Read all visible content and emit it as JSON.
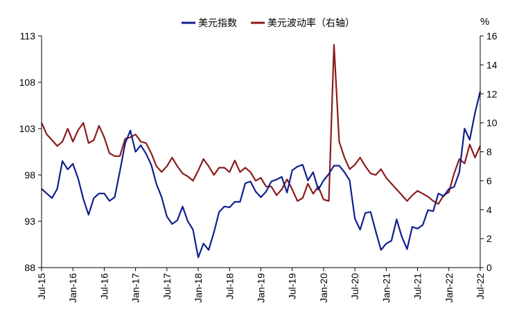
{
  "chart_data": {
    "type": "line",
    "title": "",
    "legend": {
      "placement": "top-center",
      "entries": [
        "美元指数",
        "美元波动率（右轴）"
      ]
    },
    "colors": {
      "dxy": "#0F1F8C",
      "vol": "#8B1A1A",
      "axis": "#000000"
    },
    "x": {
      "start_month": "2015-07",
      "end_month": "2022-07",
      "tick_labels": [
        "Jul-15",
        "Jan-16",
        "Jul-16",
        "Jan-17",
        "Jul-17",
        "Jan-18",
        "Jul-18",
        "Jan-19",
        "Jul-19",
        "Jan-20",
        "Jul-20",
        "Jan-21",
        "Jul-21",
        "Jan-22",
        "Jul-22"
      ]
    },
    "y_left": {
      "min": 88,
      "max": 113,
      "ticks": [
        88,
        93,
        98,
        103,
        108,
        113
      ]
    },
    "y_right": {
      "min": 0,
      "max": 16,
      "ticks": [
        0,
        2,
        4,
        6,
        8,
        10,
        12,
        14,
        16
      ],
      "unit": "%"
    },
    "series": [
      {
        "name": "美元指数",
        "axis": "left",
        "points": [
          [
            "2015-07",
            96.5
          ],
          [
            "2015-08",
            96.0
          ],
          [
            "2015-09",
            95.5
          ],
          [
            "2015-10",
            96.5
          ],
          [
            "2015-11",
            99.5
          ],
          [
            "2015-12",
            98.6
          ],
          [
            "2016-01",
            99.2
          ],
          [
            "2016-02",
            97.6
          ],
          [
            "2016-03",
            95.4
          ],
          [
            "2016-04",
            93.7
          ],
          [
            "2016-05",
            95.5
          ],
          [
            "2016-06",
            96.0
          ],
          [
            "2016-07",
            96.0
          ],
          [
            "2016-08",
            95.2
          ],
          [
            "2016-09",
            95.6
          ],
          [
            "2016-10",
            98.4
          ],
          [
            "2016-11",
            101.4
          ],
          [
            "2016-12",
            102.8
          ],
          [
            "2017-01",
            100.5
          ],
          [
            "2017-02",
            101.2
          ],
          [
            "2017-03",
            100.3
          ],
          [
            "2017-04",
            99.1
          ],
          [
            "2017-05",
            97.0
          ],
          [
            "2017-06",
            95.6
          ],
          [
            "2017-07",
            93.5
          ],
          [
            "2017-08",
            92.7
          ],
          [
            "2017-09",
            93.1
          ],
          [
            "2017-10",
            94.6
          ],
          [
            "2017-11",
            93.0
          ],
          [
            "2017-12",
            92.1
          ],
          [
            "2018-01",
            89.1
          ],
          [
            "2018-02",
            90.6
          ],
          [
            "2018-03",
            89.9
          ],
          [
            "2018-04",
            91.8
          ],
          [
            "2018-05",
            94.0
          ],
          [
            "2018-06",
            94.6
          ],
          [
            "2018-07",
            94.5
          ],
          [
            "2018-08",
            95.1
          ],
          [
            "2018-09",
            95.1
          ],
          [
            "2018-10",
            97.1
          ],
          [
            "2018-11",
            97.3
          ],
          [
            "2018-12",
            96.2
          ],
          [
            "2019-01",
            95.6
          ],
          [
            "2019-02",
            96.2
          ],
          [
            "2019-03",
            97.3
          ],
          [
            "2019-04",
            97.5
          ],
          [
            "2019-05",
            97.8
          ],
          [
            "2019-06",
            96.1
          ],
          [
            "2019-07",
            98.5
          ],
          [
            "2019-08",
            98.9
          ],
          [
            "2019-09",
            99.1
          ],
          [
            "2019-10",
            97.4
          ],
          [
            "2019-11",
            98.3
          ],
          [
            "2019-12",
            96.4
          ],
          [
            "2020-01",
            97.4
          ],
          [
            "2020-02",
            98.1
          ],
          [
            "2020-03",
            99.0
          ],
          [
            "2020-04",
            99.0
          ],
          [
            "2020-05",
            98.3
          ],
          [
            "2020-06",
            97.4
          ],
          [
            "2020-07",
            93.3
          ],
          [
            "2020-08",
            92.1
          ],
          [
            "2020-09",
            93.9
          ],
          [
            "2020-10",
            94.0
          ],
          [
            "2020-11",
            91.9
          ],
          [
            "2020-12",
            89.9
          ],
          [
            "2021-01",
            90.6
          ],
          [
            "2021-02",
            90.9
          ],
          [
            "2021-03",
            93.2
          ],
          [
            "2021-04",
            91.3
          ],
          [
            "2021-05",
            90.0
          ],
          [
            "2021-06",
            92.4
          ],
          [
            "2021-07",
            92.2
          ],
          [
            "2021-08",
            92.6
          ],
          [
            "2021-09",
            94.2
          ],
          [
            "2021-10",
            94.1
          ],
          [
            "2021-11",
            96.0
          ],
          [
            "2021-12",
            95.7
          ],
          [
            "2022-01",
            96.5
          ],
          [
            "2022-02",
            96.7
          ],
          [
            "2022-03",
            98.3
          ],
          [
            "2022-04",
            103.0
          ],
          [
            "2022-05",
            101.8
          ],
          [
            "2022-06",
            104.7
          ],
          [
            "2022-07",
            107.0
          ]
        ]
      },
      {
        "name": "美元波动率（右轴）",
        "axis": "right",
        "points": [
          [
            "2015-07",
            10.0
          ],
          [
            "2015-08",
            9.2
          ],
          [
            "2015-09",
            8.8
          ],
          [
            "2015-10",
            8.4
          ],
          [
            "2015-11",
            8.7
          ],
          [
            "2015-12",
            9.6
          ],
          [
            "2016-01",
            8.7
          ],
          [
            "2016-02",
            9.5
          ],
          [
            "2016-03",
            10.0
          ],
          [
            "2016-04",
            8.6
          ],
          [
            "2016-05",
            8.8
          ],
          [
            "2016-06",
            9.8
          ],
          [
            "2016-07",
            9.0
          ],
          [
            "2016-08",
            7.9
          ],
          [
            "2016-09",
            7.7
          ],
          [
            "2016-10",
            7.7
          ],
          [
            "2016-11",
            8.9
          ],
          [
            "2016-12",
            9.0
          ],
          [
            "2017-01",
            9.2
          ],
          [
            "2017-02",
            8.7
          ],
          [
            "2017-03",
            8.6
          ],
          [
            "2017-04",
            7.9
          ],
          [
            "2017-05",
            7.0
          ],
          [
            "2017-06",
            6.6
          ],
          [
            "2017-07",
            7.0
          ],
          [
            "2017-08",
            7.6
          ],
          [
            "2017-09",
            7.0
          ],
          [
            "2017-10",
            6.5
          ],
          [
            "2017-11",
            6.3
          ],
          [
            "2017-12",
            6.0
          ],
          [
            "2018-01",
            6.7
          ],
          [
            "2018-02",
            7.5
          ],
          [
            "2018-03",
            7.0
          ],
          [
            "2018-04",
            6.4
          ],
          [
            "2018-05",
            6.9
          ],
          [
            "2018-06",
            6.9
          ],
          [
            "2018-07",
            6.6
          ],
          [
            "2018-08",
            7.4
          ],
          [
            "2018-09",
            6.6
          ],
          [
            "2018-10",
            6.9
          ],
          [
            "2018-11",
            6.6
          ],
          [
            "2018-12",
            6.0
          ],
          [
            "2019-01",
            6.2
          ],
          [
            "2019-02",
            5.6
          ],
          [
            "2019-03",
            5.6
          ],
          [
            "2019-04",
            5.0
          ],
          [
            "2019-05",
            5.4
          ],
          [
            "2019-06",
            6.1
          ],
          [
            "2019-07",
            5.4
          ],
          [
            "2019-08",
            4.6
          ],
          [
            "2019-09",
            4.8
          ],
          [
            "2019-10",
            5.8
          ],
          [
            "2019-11",
            5.1
          ],
          [
            "2019-12",
            5.6
          ],
          [
            "2020-01",
            4.7
          ],
          [
            "2020-02",
            4.6
          ],
          [
            "2020-03",
            15.4
          ],
          [
            "2020-04",
            8.7
          ],
          [
            "2020-05",
            7.6
          ],
          [
            "2020-06",
            6.8
          ],
          [
            "2020-07",
            7.1
          ],
          [
            "2020-08",
            7.6
          ],
          [
            "2020-09",
            7.0
          ],
          [
            "2020-10",
            6.5
          ],
          [
            "2020-11",
            6.4
          ],
          [
            "2020-12",
            6.8
          ],
          [
            "2021-01",
            6.2
          ],
          [
            "2021-02",
            5.8
          ],
          [
            "2021-03",
            5.4
          ],
          [
            "2021-04",
            5.0
          ],
          [
            "2021-05",
            4.6
          ],
          [
            "2021-06",
            5.0
          ],
          [
            "2021-07",
            5.3
          ],
          [
            "2021-08",
            5.1
          ],
          [
            "2021-09",
            4.9
          ],
          [
            "2021-10",
            4.6
          ],
          [
            "2021-11",
            4.4
          ],
          [
            "2021-12",
            5.0
          ],
          [
            "2022-01",
            5.2
          ],
          [
            "2022-02",
            6.5
          ],
          [
            "2022-03",
            7.5
          ],
          [
            "2022-04",
            7.2
          ],
          [
            "2022-05",
            8.5
          ],
          [
            "2022-06",
            7.6
          ],
          [
            "2022-07",
            8.4
          ]
        ]
      }
    ]
  }
}
